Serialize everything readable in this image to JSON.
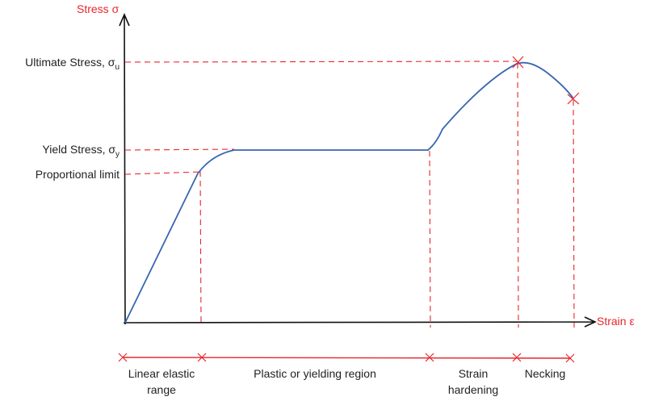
{
  "axes": {
    "y_label": "Stress σ",
    "x_label": "Strain ε"
  },
  "levels": [
    {
      "text": "Ultimate Stress, σ",
      "subscript": "u"
    },
    {
      "text": "Yield Stress, σ",
      "subscript": "y"
    },
    {
      "text": "Proportional limit"
    }
  ],
  "regions": [
    {
      "lines": [
        "Linear elastic",
        "range"
      ]
    },
    {
      "lines": [
        "Plastic or yielding region"
      ]
    },
    {
      "lines": [
        "Strain",
        "hardening"
      ]
    },
    {
      "lines": [
        "Necking"
      ]
    }
  ]
}
